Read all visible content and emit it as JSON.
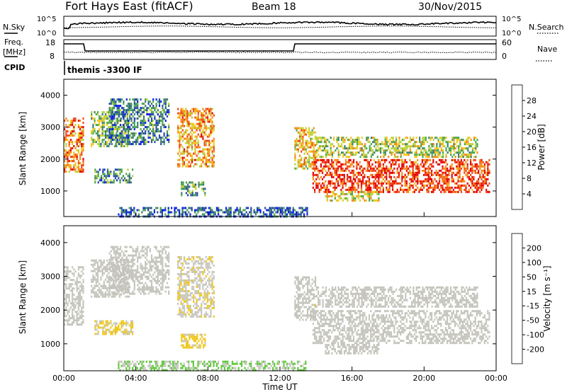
{
  "header": {
    "station": "Fort Hays East (fitACF)",
    "beam": "Beam 18",
    "date": "30/Nov/2015"
  },
  "status_panel": {
    "nsky_label": "N.Sky",
    "nsearch_label": "N.Search",
    "freq_label": "Freq.",
    "freq_unit": "[MHz]",
    "nave_label": "Nave",
    "cpid_label": "CPID",
    "cpid_value": "themis -3300 IF",
    "noise_ticks_left": [
      "10^5",
      "10^0"
    ],
    "noise_ticks_right": [
      "10^5",
      "10^0"
    ],
    "freq_ticks": [
      "18",
      "8"
    ],
    "nave_ticks": [
      "60",
      "0"
    ]
  },
  "colors": {
    "power_scale": [
      "#0a1ee6",
      "#284ba8",
      "#3c7d6e",
      "#4aa54a",
      "#b4d23c",
      "#f0c81e",
      "#f58c14",
      "#f04614",
      "#e60000"
    ],
    "velocity_scale": [
      "#1a1ab4",
      "#284ba8",
      "#3c7d6e",
      "#5fc83c",
      "#c8c8c0",
      "#f0c81e",
      "#f58c14",
      "#f04614",
      "#e60000"
    ],
    "ground_scatter": "#c4c4bc"
  },
  "chart_data": [
    {
      "type": "heatmap",
      "name": "power-panel",
      "ylabel": "Slant Range [km]",
      "yticks": [
        "1000",
        "2000",
        "3000",
        "4000"
      ],
      "ylim": [
        200,
        4500
      ],
      "xlim": [
        0,
        24
      ],
      "colorbar": {
        "label": "Power [dB]",
        "ticks": [
          "4",
          "8",
          "12",
          "16",
          "20",
          "24",
          "28"
        ],
        "range": [
          0,
          32
        ]
      },
      "scatter_regions": [
        {
          "t0": 0.0,
          "t1": 1.1,
          "r0": 1600,
          "r1": 3300,
          "value": 24
        },
        {
          "t0": 1.5,
          "t1": 3.6,
          "r0": 2400,
          "r1": 3500,
          "value": 14
        },
        {
          "t0": 1.7,
          "t1": 3.8,
          "r0": 1300,
          "r1": 1700,
          "value": 10
        },
        {
          "t0": 2.5,
          "t1": 5.8,
          "r0": 2500,
          "r1": 3900,
          "value": 8
        },
        {
          "t0": 6.3,
          "t1": 8.3,
          "r0": 1800,
          "r1": 3600,
          "value": 22
        },
        {
          "t0": 6.5,
          "t1": 7.8,
          "r0": 900,
          "r1": 1300,
          "value": 12
        },
        {
          "t0": 12.8,
          "t1": 14.0,
          "r0": 1700,
          "r1": 3000,
          "value": 20
        },
        {
          "t0": 13.8,
          "t1": 23.6,
          "r0": 1000,
          "r1": 2000,
          "value": 28
        },
        {
          "t0": 14.0,
          "t1": 23.0,
          "r0": 2100,
          "r1": 2700,
          "value": 16
        },
        {
          "t0": 14.5,
          "t1": 17.5,
          "r0": 700,
          "r1": 1000,
          "value": 18
        },
        {
          "t0": 3.0,
          "t1": 13.5,
          "r0": 200,
          "r1": 500,
          "value": 6
        }
      ]
    },
    {
      "type": "heatmap",
      "name": "velocity-panel",
      "ylabel": "Slant Range [km]",
      "yticks": [
        "1000",
        "2000",
        "3000",
        "4000"
      ],
      "ylim": [
        200,
        4500
      ],
      "xlim": [
        0,
        24
      ],
      "xticks": [
        "00:00",
        "04:00",
        "08:00",
        "12:00",
        "16:00",
        "20:00",
        "00:00"
      ],
      "xlabel": "Time UT",
      "colorbar": {
        "label": "Velocity [m s⁻¹]",
        "ticks": [
          "200",
          "100",
          "50",
          "15",
          "-15",
          "-50",
          "-100",
          "-200"
        ],
        "range": [
          -250,
          250
        ]
      },
      "scatter_regions": [
        {
          "t0": 0.0,
          "t1": 1.1,
          "r0": 1600,
          "r1": 3300,
          "value": 0
        },
        {
          "t0": 1.5,
          "t1": 3.6,
          "r0": 2400,
          "r1": 3500,
          "value": 0
        },
        {
          "t0": 1.7,
          "t1": 3.8,
          "r0": 1300,
          "r1": 1700,
          "value": 30
        },
        {
          "t0": 2.5,
          "t1": 5.8,
          "r0": 2500,
          "r1": 3900,
          "value": 0
        },
        {
          "t0": 6.3,
          "t1": 8.3,
          "r0": 1800,
          "r1": 3600,
          "value": 20
        },
        {
          "t0": 6.5,
          "t1": 7.8,
          "r0": 900,
          "r1": 1300,
          "value": 40
        },
        {
          "t0": 12.8,
          "t1": 14.0,
          "r0": 1700,
          "r1": 3000,
          "value": 10
        },
        {
          "t0": 13.8,
          "t1": 23.6,
          "r0": 1000,
          "r1": 2000,
          "value": 0
        },
        {
          "t0": 14.0,
          "t1": 23.0,
          "r0": 2100,
          "r1": 2700,
          "value": 0
        },
        {
          "t0": 14.5,
          "t1": 17.5,
          "r0": 700,
          "r1": 1000,
          "value": 0
        },
        {
          "t0": 3.0,
          "t1": 13.5,
          "r0": 200,
          "r1": 500,
          "value": -30
        }
      ]
    }
  ]
}
